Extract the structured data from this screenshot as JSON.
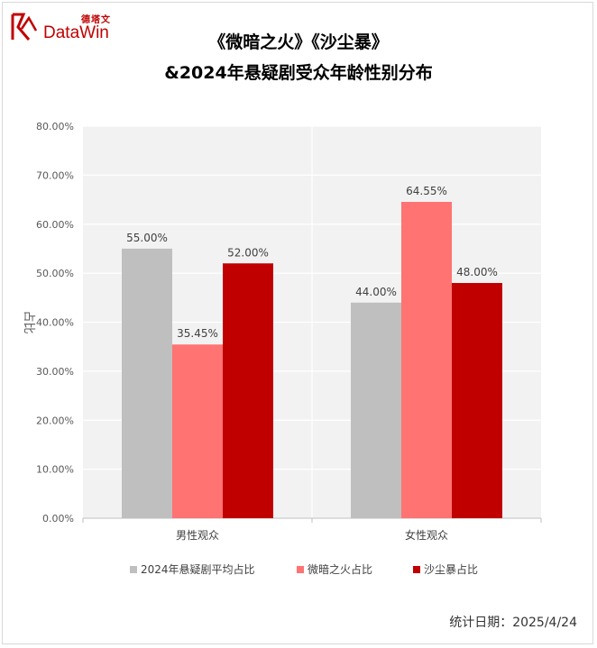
{
  "brand": {
    "logo_cn": "德塔文",
    "logo_en": "DataWin"
  },
  "chart_data": {
    "type": "bar",
    "title": "《微暗之火》《沙尘暴》",
    "subtitle": "&2024年悬疑剧受众年龄性别分布",
    "ylabel": "占比",
    "xlabel": "",
    "ylim": [
      0,
      80
    ],
    "yticks": [
      "0.00%",
      "10.00%",
      "20.00%",
      "30.00%",
      "40.00%",
      "50.00%",
      "60.00%",
      "70.00%",
      "80.00%"
    ],
    "categories": [
      "男性观众",
      "女性观众"
    ],
    "series": [
      {
        "name": "2024年悬疑剧平均占比",
        "values": [
          55.0,
          44.0
        ],
        "labels": [
          "55.00%",
          "44.00%"
        ],
        "color": "#bfbfbf"
      },
      {
        "name": "微暗之火占比",
        "values": [
          35.45,
          64.55
        ],
        "labels": [
          "35.45%",
          "64.55%"
        ],
        "color": "#ff7373"
      },
      {
        "name": "沙尘暴占比",
        "values": [
          52.0,
          48.0
        ],
        "labels": [
          "52.00%",
          "48.00%"
        ],
        "color": "#c00000"
      }
    ],
    "grid": true,
    "legend_position": "bottom",
    "plot_background": "#f2f2f2"
  },
  "footer": {
    "stat_date": "统计日期：2025/4/24"
  }
}
